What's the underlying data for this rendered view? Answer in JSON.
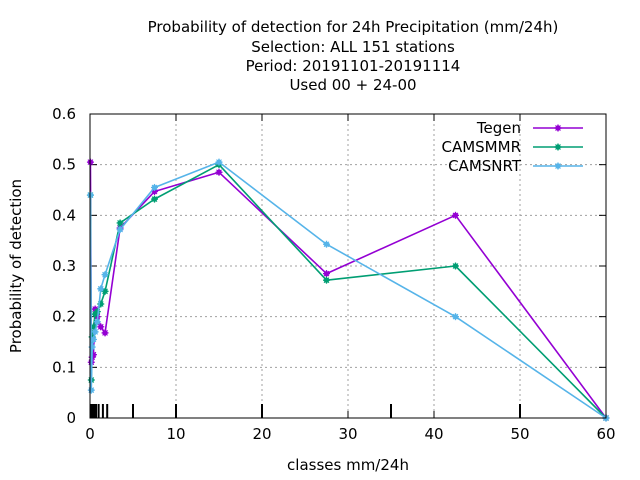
{
  "chart_data": {
    "type": "line",
    "title_lines": [
      "Probability of detection  for 24h Precipitation (mm/24h)",
      "Selection: ALL    151 stations",
      "Period: 20191101-20191114",
      "Used  00 + 24-00"
    ],
    "xlabel": "classes mm/24h",
    "ylabel": "Probability of detection",
    "xlim": [
      0,
      60
    ],
    "ylim": [
      0,
      0.6
    ],
    "xticks": [
      0,
      10,
      20,
      30,
      40,
      50,
      60
    ],
    "yticks": [
      0,
      0.1,
      0.2,
      0.3,
      0.4,
      0.5,
      0.6
    ],
    "xtick_labels": [
      "0",
      "10",
      "20",
      "30",
      "40",
      "50",
      "60"
    ],
    "ytick_labels": [
      "0",
      "0.1",
      "0.2",
      "0.3",
      "0.4",
      "0.5",
      "0.6"
    ],
    "class_marks": [
      0.1,
      0.2,
      0.3,
      0.5,
      0.7,
      1,
      1.5,
      2,
      5,
      10,
      20,
      35,
      50
    ],
    "grid": true,
    "legend_position": "top-right",
    "series": [
      {
        "name": "Tegen",
        "color": "#9400d3",
        "points": [
          [
            0.05,
            0.505
          ],
          [
            0.15,
            0.11
          ],
          [
            0.25,
            0.12
          ],
          [
            0.4,
            0.125
          ],
          [
            0.6,
            0.215
          ],
          [
            0.85,
            0.2
          ],
          [
            1.25,
            0.18
          ],
          [
            1.75,
            0.168
          ],
          [
            3.5,
            0.375
          ],
          [
            7.5,
            0.447
          ],
          [
            15,
            0.485
          ],
          [
            27.5,
            0.285
          ],
          [
            42.5,
            0.4
          ],
          [
            60,
            0.0
          ]
        ]
      },
      {
        "name": "CAMSMMR",
        "color": "#009e73",
        "points": [
          [
            0.05,
            0.44
          ],
          [
            0.15,
            0.075
          ],
          [
            0.25,
            0.16
          ],
          [
            0.4,
            0.18
          ],
          [
            0.6,
            0.205
          ],
          [
            0.85,
            0.21
          ],
          [
            1.25,
            0.225
          ],
          [
            1.75,
            0.25
          ],
          [
            3.5,
            0.385
          ],
          [
            7.5,
            0.432
          ],
          [
            15,
            0.5
          ],
          [
            27.5,
            0.272
          ],
          [
            42.5,
            0.3
          ],
          [
            60,
            0.0
          ]
        ]
      },
      {
        "name": "CAMSNRT",
        "color": "#56b4e9",
        "points": [
          [
            0.05,
            0.44
          ],
          [
            0.15,
            0.055
          ],
          [
            0.25,
            0.14
          ],
          [
            0.4,
            0.155
          ],
          [
            0.6,
            0.17
          ],
          [
            0.85,
            0.19
          ],
          [
            1.25,
            0.255
          ],
          [
            1.75,
            0.283
          ],
          [
            3.5,
            0.372
          ],
          [
            7.5,
            0.455
          ],
          [
            15,
            0.505
          ],
          [
            27.5,
            0.343
          ],
          [
            42.5,
            0.2
          ],
          [
            60,
            0.0
          ]
        ]
      }
    ]
  }
}
